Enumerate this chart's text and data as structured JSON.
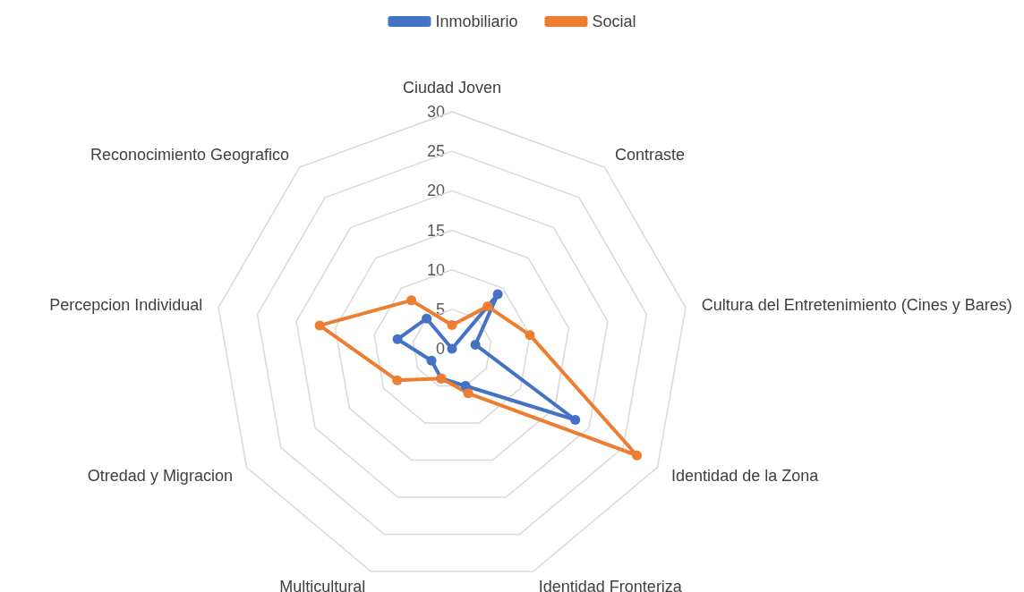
{
  "chart_data": {
    "type": "radar",
    "categories": [
      "Ciudad Joven",
      "Contraste",
      "Cultura del Entretenimiento (Cines y Bares)",
      "Identidad de la Zona",
      "Identidad Fronteriza",
      "Multicultural",
      "Otredad y Migracion",
      "Percepcion Individual",
      "Reconocimiento Geografico"
    ],
    "series": [
      {
        "name": "Inmobiliario",
        "color": "#4472c4",
        "values": [
          0,
          9,
          3,
          18,
          5,
          4,
          3,
          7,
          5
        ]
      },
      {
        "name": "Social",
        "color": "#ed7d31",
        "values": [
          3,
          7,
          10,
          27,
          6,
          4,
          8,
          17,
          8
        ]
      }
    ],
    "ylim": [
      0,
      30
    ],
    "yticks": [
      0,
      5,
      10,
      15,
      20,
      25,
      30
    ],
    "grid": true,
    "legend": "top",
    "marker": "circle",
    "line_style": "solid"
  }
}
